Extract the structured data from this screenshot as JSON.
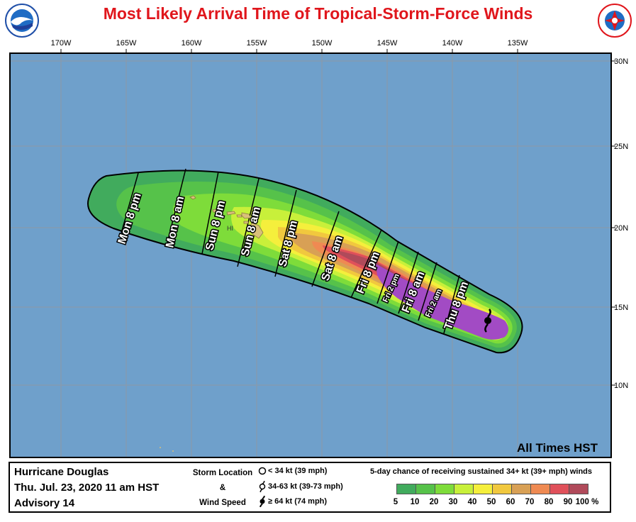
{
  "title": "Most Likely Arrival Time of Tropical-Storm-Force Winds",
  "logos": {
    "left": "NOAA",
    "right": "NATIONAL WEATHER SERVICE"
  },
  "map": {
    "longitude_labels": [
      "170W",
      "165W",
      "160W",
      "155W",
      "150W",
      "145W",
      "140W",
      "135W"
    ],
    "latitude_labels": [
      "30N",
      "25N",
      "20N",
      "15N",
      "10N"
    ],
    "colors": {
      "ocean": "#6fa0cb",
      "grid": "#8e99a6",
      "land": "#d9c07a",
      "outline": "#000000"
    },
    "place_label": "HI",
    "arrival_labels": [
      "Mon 8 pm",
      "Mon 8 am",
      "Sun 8 pm",
      "Sun 8 am",
      "Sat 8 pm",
      "Sat 8 am",
      "Fri 8 pm",
      "Fri 2 pm",
      "Fri 8 am",
      "Fri 2 am",
      "Thu 8 pm"
    ],
    "time_zone_note": "All Times HST"
  },
  "storm": {
    "name": "Hurricane Douglas",
    "issued": "Thu. Jul. 23, 2020  11 am HST",
    "advisory": "Advisory 14"
  },
  "legend": {
    "storm_location_lines": [
      "Storm Location",
      "&",
      "Wind Speed"
    ],
    "symbols": [
      {
        "icon": "circle-icon",
        "label": "< 34 kt (39 mph)"
      },
      {
        "icon": "tropical-storm-icon",
        "label": "34-63 kt (39-73 mph)"
      },
      {
        "icon": "hurricane-icon",
        "label": "≥ 64 kt (74 mph)"
      }
    ],
    "probability_title": "5-day chance of receiving sustained 34+ kt (39+ mph) winds",
    "probability_scale": [
      {
        "label": "5",
        "color": "#41ab5d"
      },
      {
        "label": "10",
        "color": "#56c24a"
      },
      {
        "label": "20",
        "color": "#7edc3a"
      },
      {
        "label": "30",
        "color": "#c8f03a"
      },
      {
        "label": "40",
        "color": "#f5ef3c"
      },
      {
        "label": "50",
        "color": "#f1c83e"
      },
      {
        "label": "60",
        "color": "#d8a055"
      },
      {
        "label": "70",
        "color": "#ef8a52"
      },
      {
        "label": "80",
        "color": "#e0505a"
      },
      {
        "label": "90",
        "color": "#b04a5a"
      },
      {
        "label": "100 %",
        "color": "#a24bc4"
      }
    ]
  }
}
